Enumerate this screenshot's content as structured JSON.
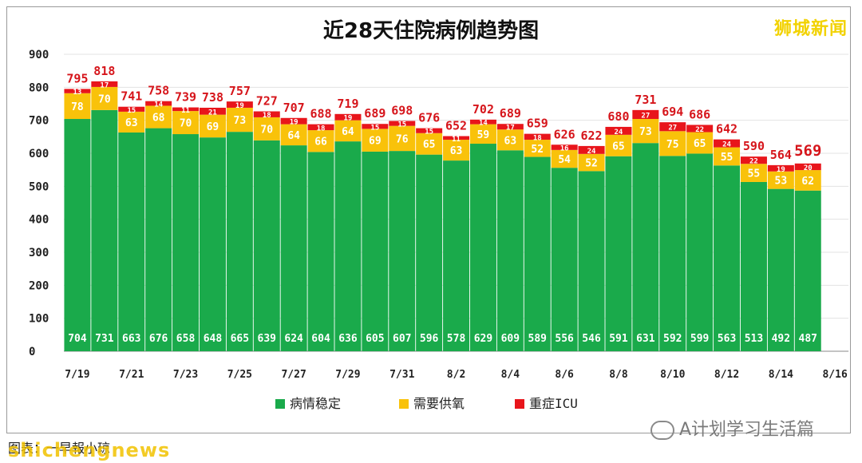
{
  "header": {
    "title": "近28天住院病例趋势图",
    "brand": "狮城新闻"
  },
  "footer": {
    "wechat": "A计划学习生活篇",
    "source": "图表：一早報小琼",
    "brand_latin": "shichengnews"
  },
  "colors": {
    "stable": "#1aaa4b",
    "oxygen": "#f9c20a",
    "icu": "#e8151b",
    "total_label": "#d6151b"
  },
  "chart_data": {
    "type": "bar",
    "stacked": true,
    "ylim": [
      0,
      900
    ],
    "yticks": [
      0,
      100,
      200,
      300,
      400,
      500,
      600,
      700,
      800,
      900
    ],
    "grid": true,
    "legend_position": "bottom",
    "categories": [
      "7/19",
      "7/20",
      "7/21",
      "7/22",
      "7/23",
      "7/24",
      "7/25",
      "7/26",
      "7/27",
      "7/28",
      "7/29",
      "7/30",
      "7/31",
      "8/1",
      "8/2",
      "8/3",
      "8/4",
      "8/5",
      "8/6",
      "8/7",
      "8/8",
      "8/9",
      "8/10",
      "8/11",
      "8/12",
      "8/13",
      "8/14",
      "8/15",
      "8/16"
    ],
    "xtick_labels": [
      "7/19",
      "",
      "7/21",
      "",
      "7/23",
      "",
      "7/25",
      "",
      "7/27",
      "",
      "7/29",
      "",
      "7/31",
      "",
      "8/2",
      "",
      "8/4",
      "",
      "8/6",
      "",
      "8/8",
      "",
      "8/10",
      "",
      "8/12",
      "",
      "8/14",
      "",
      "8/16"
    ],
    "series": [
      {
        "name": "病情稳定",
        "values": [
          704,
          731,
          663,
          676,
          658,
          648,
          665,
          639,
          624,
          604,
          636,
          605,
          607,
          596,
          578,
          629,
          609,
          589,
          556,
          546,
          591,
          631,
          592,
          599,
          563,
          513,
          492,
          487,
          null
        ]
      },
      {
        "name": "需要供氧",
        "values": [
          78,
          70,
          63,
          68,
          70,
          69,
          73,
          70,
          64,
          66,
          64,
          69,
          76,
          65,
          63,
          59,
          63,
          52,
          54,
          52,
          65,
          73,
          75,
          65,
          55,
          55,
          53,
          62,
          null
        ]
      },
      {
        "name": "重症ICU",
        "values": [
          13,
          17,
          15,
          14,
          11,
          21,
          19,
          18,
          19,
          18,
          19,
          15,
          15,
          15,
          11,
          14,
          17,
          18,
          16,
          24,
          24,
          27,
          27,
          22,
          24,
          22,
          19,
          20,
          null
        ]
      }
    ],
    "totals": [
      795,
      818,
      741,
      758,
      739,
      738,
      757,
      727,
      707,
      688,
      719,
      689,
      698,
      676,
      652,
      702,
      689,
      659,
      626,
      622,
      680,
      731,
      694,
      686,
      642,
      590,
      564,
      569,
      null
    ]
  }
}
